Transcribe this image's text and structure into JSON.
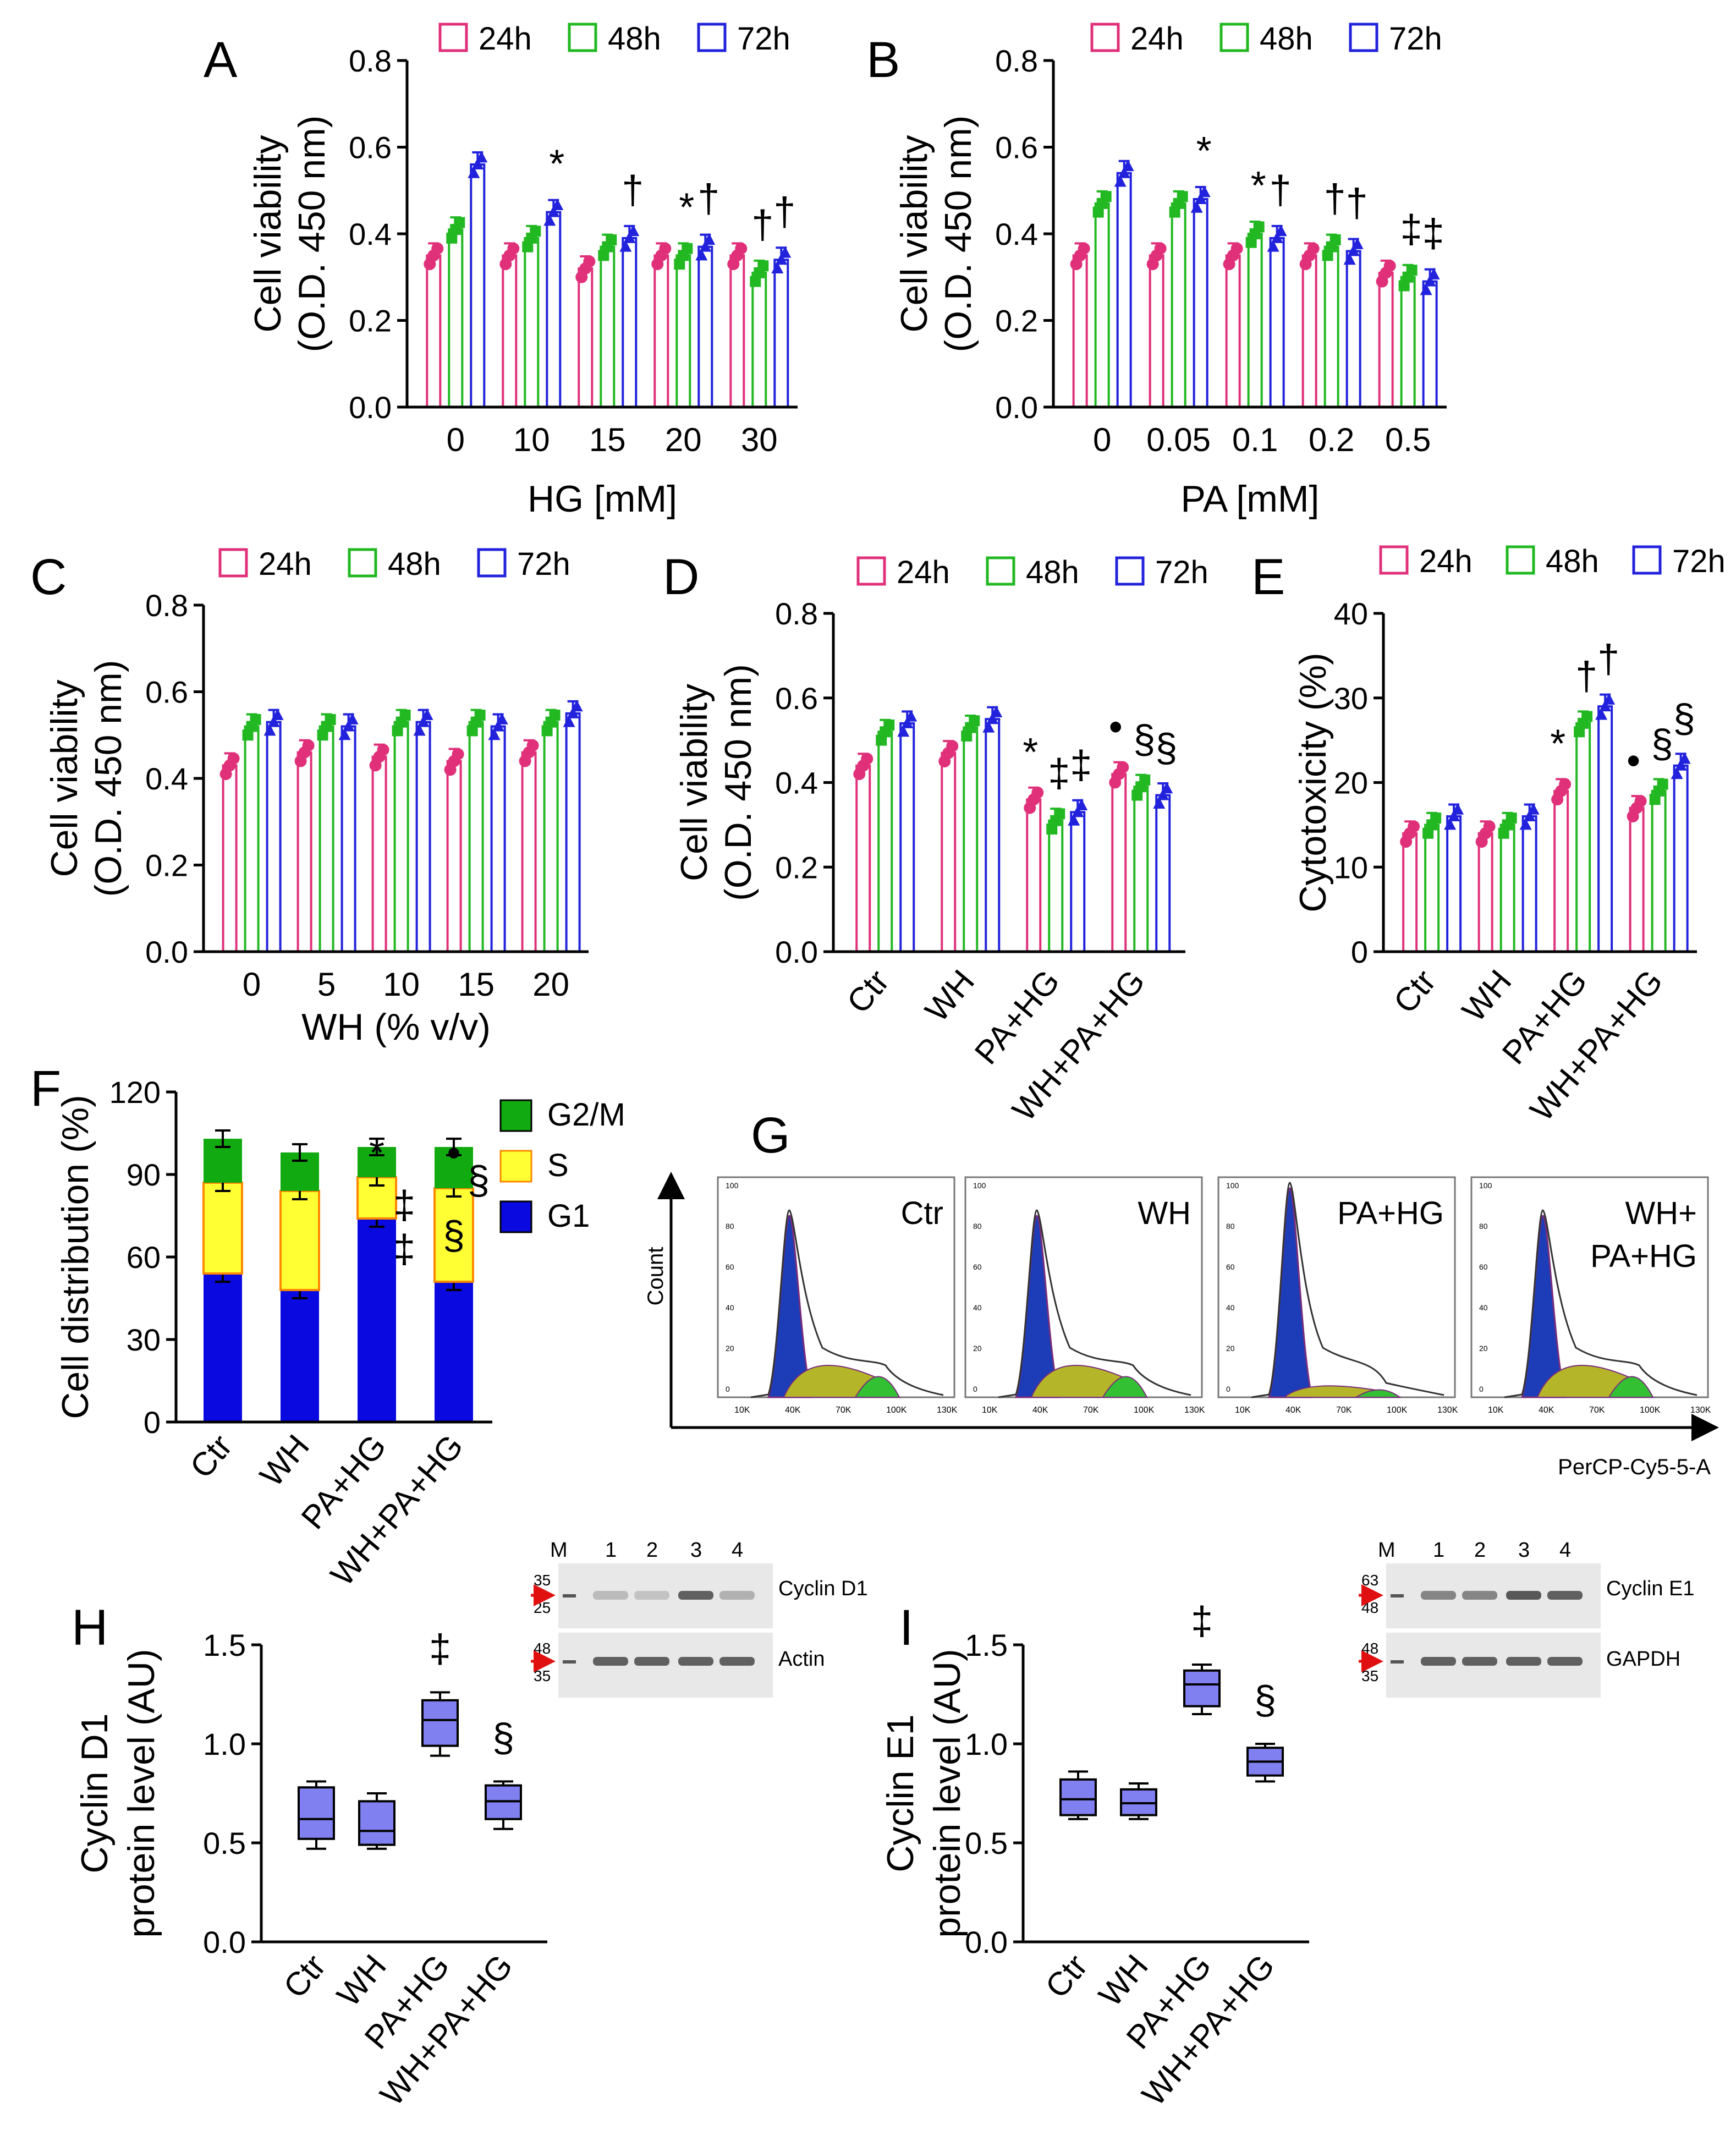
{
  "colors": {
    "h24": "#e0307a",
    "h48": "#22b822",
    "h72": "#2222dd",
    "g1": "#0a0ae0",
    "s": "#ffff33",
    "g2m": "#11aa11",
    "box": "#8080f0",
    "axis": "#000000"
  },
  "legend_time": [
    "24h",
    "48h",
    "72h"
  ],
  "chart_data": [
    {
      "panel": "A",
      "type": "bar",
      "ylabel1": "Cell viability",
      "ylabel2": "(O.D. 450 nm)",
      "xlabel": "HG [mM]",
      "ylim": [
        0,
        0.8
      ],
      "yticks": [
        "0.0",
        "0.2",
        "0.4",
        "0.6",
        "0.8"
      ],
      "categories": [
        "0",
        "10",
        "15",
        "20",
        "30"
      ],
      "series": [
        {
          "name": "24h",
          "values": [
            0.35,
            0.35,
            0.32,
            0.35,
            0.35
          ]
        },
        {
          "name": "48h",
          "values": [
            0.41,
            0.39,
            0.37,
            0.35,
            0.31
          ]
        },
        {
          "name": "72h",
          "values": [
            0.56,
            0.45,
            0.39,
            0.37,
            0.34
          ]
        }
      ],
      "annotations": [
        {
          "cat": 1,
          "s": 2,
          "text": "*"
        },
        {
          "cat": 2,
          "s": 2,
          "text": "†"
        },
        {
          "cat": 3,
          "s": 1,
          "text": "*"
        },
        {
          "cat": 3,
          "s": 2,
          "text": "†"
        },
        {
          "cat": 4,
          "s": 1,
          "text": "†"
        },
        {
          "cat": 4,
          "s": 2,
          "text": "†"
        }
      ]
    },
    {
      "panel": "B",
      "type": "bar",
      "ylabel1": "Cell viability",
      "ylabel2": "(O.D. 450 nm)",
      "xlabel": "PA [mM]",
      "ylim": [
        0,
        0.8
      ],
      "yticks": [
        "0.0",
        "0.2",
        "0.4",
        "0.6",
        "0.8"
      ],
      "categories": [
        "0",
        "0.05",
        "0.1",
        "0.2",
        "0.5"
      ],
      "series": [
        {
          "name": "24h",
          "values": [
            0.35,
            0.35,
            0.35,
            0.35,
            0.31
          ]
        },
        {
          "name": "48h",
          "values": [
            0.47,
            0.47,
            0.4,
            0.37,
            0.3
          ]
        },
        {
          "name": "72h",
          "values": [
            0.54,
            0.48,
            0.39,
            0.36,
            0.29
          ]
        }
      ],
      "annotations": [
        {
          "cat": 1,
          "s": 2,
          "text": "*"
        },
        {
          "cat": 2,
          "s": 1,
          "text": "*"
        },
        {
          "cat": 2,
          "s": 2,
          "text": "†"
        },
        {
          "cat": 3,
          "s": 1,
          "text": "†"
        },
        {
          "cat": 3,
          "s": 2,
          "text": "†"
        },
        {
          "cat": 4,
          "s": 1,
          "text": "‡"
        },
        {
          "cat": 4,
          "s": 2,
          "text": "‡"
        }
      ]
    },
    {
      "panel": "C",
      "type": "bar",
      "ylabel1": "Cell viability",
      "ylabel2": "(O.D. 450 nm)",
      "xlabel": "WH (% v/v)",
      "ylim": [
        0,
        0.8
      ],
      "yticks": [
        "0.0",
        "0.2",
        "0.4",
        "0.6",
        "0.8"
      ],
      "categories": [
        "0",
        "5",
        "10",
        "15",
        "20"
      ],
      "series": [
        {
          "name": "24h",
          "values": [
            0.43,
            0.46,
            0.45,
            0.44,
            0.46
          ]
        },
        {
          "name": "48h",
          "values": [
            0.52,
            0.52,
            0.53,
            0.53,
            0.53
          ]
        },
        {
          "name": "72h",
          "values": [
            0.53,
            0.52,
            0.53,
            0.52,
            0.55
          ]
        }
      ],
      "annotations": []
    },
    {
      "panel": "D",
      "type": "bar",
      "ylabel1": "Cell viability",
      "ylabel2": "(O.D. 450 nm)",
      "xlabel": "",
      "ylim": [
        0,
        0.8
      ],
      "yticks": [
        "0.0",
        "0.2",
        "0.4",
        "0.6",
        "0.8"
      ],
      "categories": [
        "Ctr",
        "WH",
        "PA+HG",
        "WH+PA+HG"
      ],
      "series": [
        {
          "name": "24h",
          "values": [
            0.44,
            0.47,
            0.36,
            0.42
          ]
        },
        {
          "name": "48h",
          "values": [
            0.52,
            0.53,
            0.31,
            0.39
          ]
        },
        {
          "name": "72h",
          "values": [
            0.54,
            0.55,
            0.33,
            0.37
          ]
        }
      ],
      "annotations": [
        {
          "cat": 2,
          "s": 0,
          "text": "*"
        },
        {
          "cat": 2,
          "s": 1,
          "text": "‡"
        },
        {
          "cat": 2,
          "s": 2,
          "text": "‡"
        },
        {
          "cat": 3,
          "s": 0,
          "text": "•"
        },
        {
          "cat": 3,
          "s": 1,
          "text": "§"
        },
        {
          "cat": 3,
          "s": 2,
          "text": "§"
        }
      ]
    },
    {
      "panel": "E",
      "type": "bar",
      "ylabel1": "Cytotoxicity (%)",
      "ylabel2": "",
      "xlabel": "",
      "ylim": [
        0,
        40
      ],
      "yticks": [
        "0",
        "10",
        "20",
        "30",
        "40"
      ],
      "categories": [
        "Ctr",
        "WH",
        "PA+HG",
        "WH+PA+HG"
      ],
      "series": [
        {
          "name": "24h",
          "values": [
            14,
            14,
            19,
            17
          ]
        },
        {
          "name": "48h",
          "values": [
            15,
            15,
            27,
            19
          ]
        },
        {
          "name": "72h",
          "values": [
            16,
            16,
            29,
            22
          ]
        }
      ],
      "annotations": [
        {
          "cat": 2,
          "s": 0,
          "text": "*"
        },
        {
          "cat": 2,
          "s": 1,
          "text": "†"
        },
        {
          "cat": 2,
          "s": 2,
          "text": "†"
        },
        {
          "cat": 3,
          "s": 0,
          "text": "•"
        },
        {
          "cat": 3,
          "s": 1,
          "text": "§"
        },
        {
          "cat": 3,
          "s": 2,
          "text": "§"
        }
      ]
    },
    {
      "panel": "F",
      "type": "bar",
      "stacked": true,
      "ylabel1": "Cell distribution (%)",
      "xlabel": "",
      "ylim": [
        0,
        120
      ],
      "yticks": [
        "0",
        "30",
        "60",
        "90",
        "120"
      ],
      "categories": [
        "Ctr",
        "WH",
        "PA+HG",
        "WH+PA+HG"
      ],
      "series": [
        {
          "name": "G1",
          "values": [
            54,
            48,
            74,
            51
          ]
        },
        {
          "name": "S",
          "values": [
            33,
            36,
            15,
            34
          ]
        },
        {
          "name": "G2/M",
          "values": [
            16,
            14,
            11,
            15
          ]
        }
      ],
      "legend": [
        "G2/M",
        "S",
        "G1"
      ],
      "annotations": [
        {
          "text": "*"
        },
        {
          "text": "‡"
        },
        {
          "text": "‡"
        },
        {
          "text": "•"
        },
        {
          "text": "§"
        },
        {
          "text": "§"
        }
      ]
    },
    {
      "panel": "H",
      "type": "box",
      "ylabel1": "Cyclin D1",
      "ylabel2": "protein level (AU)",
      "ylim": [
        0,
        1.5
      ],
      "yticks": [
        "0.0",
        "0.5",
        "1.0",
        "1.5"
      ],
      "categories": [
        "Ctr",
        "WH",
        "PA+HG",
        "WH+PA+HG"
      ],
      "boxes": [
        {
          "min": 0.47,
          "q1": 0.52,
          "median": 0.62,
          "q3": 0.78,
          "max": 0.81
        },
        {
          "min": 0.47,
          "q1": 0.49,
          "median": 0.56,
          "q3": 0.71,
          "max": 0.75
        },
        {
          "min": 0.94,
          "q1": 0.99,
          "median": 1.12,
          "q3": 1.22,
          "max": 1.26
        },
        {
          "min": 0.57,
          "q1": 0.62,
          "median": 0.71,
          "q3": 0.79,
          "max": 0.81
        }
      ],
      "annotations": [
        {
          "cat": 2,
          "text": "‡"
        },
        {
          "cat": 3,
          "text": "§"
        }
      ]
    },
    {
      "panel": "I",
      "type": "box",
      "ylabel1": "Cyclin E1",
      "ylabel2": "protein level (AU)",
      "ylim": [
        0,
        1.5
      ],
      "yticks": [
        "0.0",
        "0.5",
        "1.0",
        "1.5"
      ],
      "categories": [
        "Ctr",
        "WH",
        "PA+HG",
        "WH+PA+HG"
      ],
      "boxes": [
        {
          "min": 0.62,
          "q1": 0.64,
          "median": 0.72,
          "q3": 0.82,
          "max": 0.86
        },
        {
          "min": 0.62,
          "q1": 0.64,
          "median": 0.7,
          "q3": 0.77,
          "max": 0.8
        },
        {
          "min": 1.15,
          "q1": 1.19,
          "median": 1.3,
          "q3": 1.37,
          "max": 1.4
        },
        {
          "min": 0.81,
          "q1": 0.84,
          "median": 0.91,
          "q3": 0.98,
          "max": 1.0
        }
      ],
      "annotations": [
        {
          "cat": 2,
          "text": "‡"
        },
        {
          "cat": 3,
          "text": "§"
        }
      ]
    }
  ],
  "flow": {
    "letter": "G",
    "panels": [
      "Ctr",
      "WH",
      "PA+HG",
      "WH+\nPA+HG"
    ],
    "ylabel": "Count",
    "xlabel": "PerCP-Cy5-5-A",
    "xticks": [
      "10K",
      "40K",
      "70K",
      "100K",
      "130K"
    ],
    "yticks": [
      "0",
      "20",
      "40",
      "60",
      "80",
      "100"
    ]
  },
  "blots": [
    {
      "lanes": [
        "M",
        "1",
        "2",
        "3",
        "4"
      ],
      "markers_top": [
        "35",
        "25"
      ],
      "markers_bottom": [
        "48",
        "35"
      ],
      "label_top": "Cyclin D1",
      "label_bottom": "Actin"
    },
    {
      "lanes": [
        "M",
        "1",
        "2",
        "3",
        "4"
      ],
      "markers_top": [
        "63",
        "48"
      ],
      "markers_bottom": [
        "48",
        "35"
      ],
      "label_top": "Cyclin E1",
      "label_bottom": "GAPDH"
    }
  ]
}
